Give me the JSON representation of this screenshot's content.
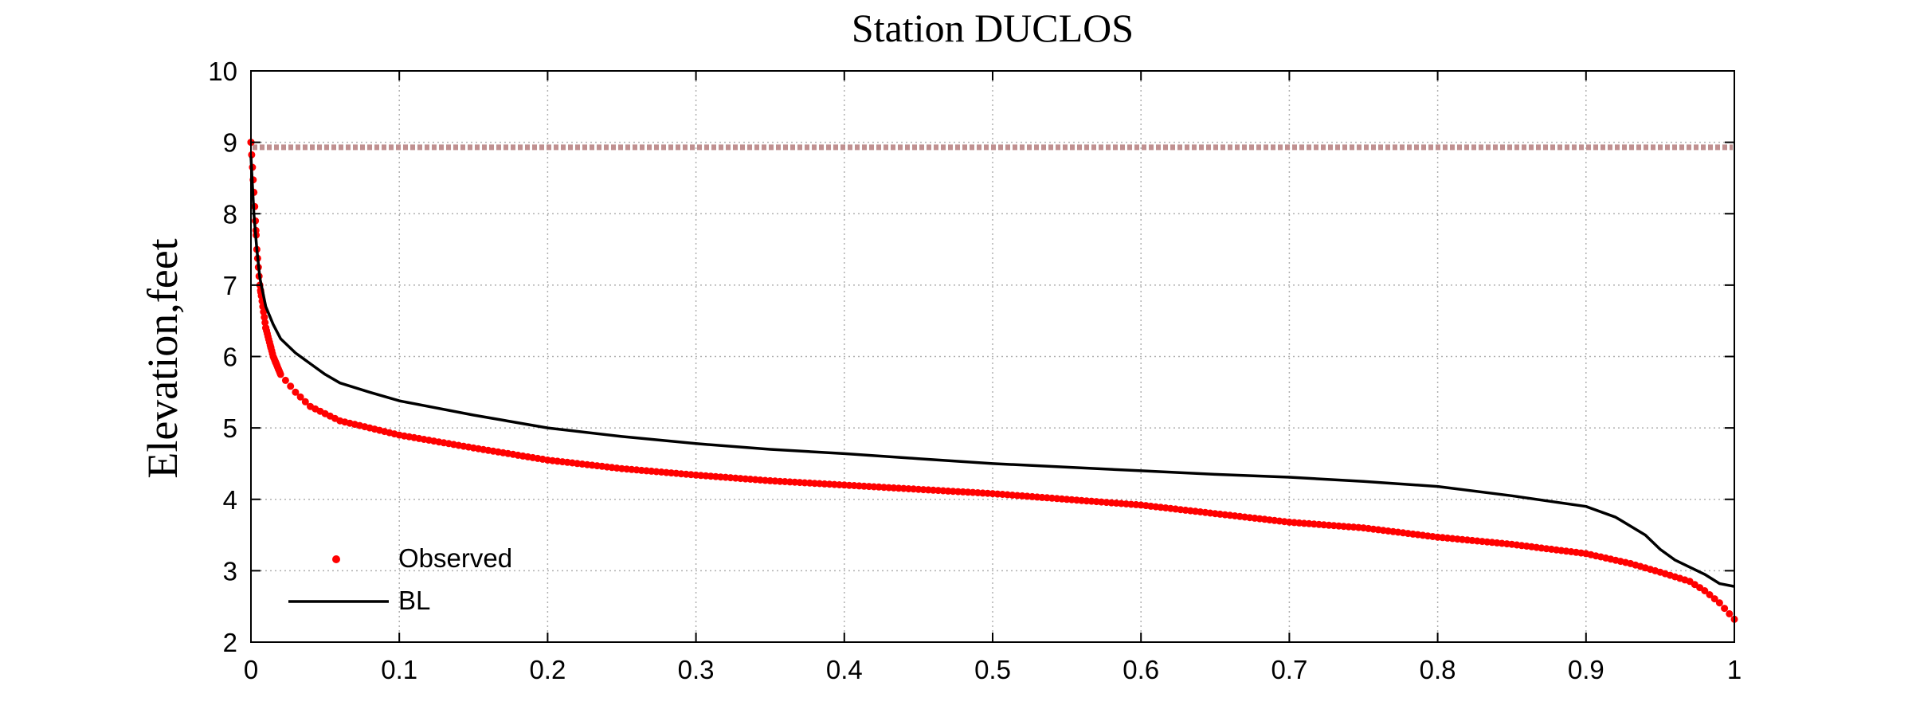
{
  "chart_data": {
    "type": "line",
    "title": "Station DUCLOS",
    "xlabel": "",
    "ylabel": "Elevation,feet",
    "xlim": [
      0,
      1
    ],
    "ylim": [
      2,
      10
    ],
    "x_ticks": [
      "0",
      "0.1",
      "0.2",
      "0.3",
      "0.4",
      "0.5",
      "0.6",
      "0.7",
      "0.8",
      "0.9",
      "1"
    ],
    "y_ticks": [
      "2",
      "3",
      "4",
      "5",
      "6",
      "7",
      "8",
      "9",
      "10"
    ],
    "grid": true,
    "legend_position": "bottom-left",
    "reference_line": {
      "y": 8.93,
      "color": "#c09090",
      "style": "dashed"
    },
    "series": [
      {
        "name": "Observed",
        "style": "markers",
        "color": "#ff0000",
        "x": [
          0,
          0.002,
          0.004,
          0.006,
          0.008,
          0.01,
          0.015,
          0.02,
          0.03,
          0.04,
          0.05,
          0.06,
          0.08,
          0.1,
          0.15,
          0.2,
          0.25,
          0.3,
          0.35,
          0.4,
          0.45,
          0.5,
          0.55,
          0.6,
          0.65,
          0.7,
          0.75,
          0.8,
          0.85,
          0.9,
          0.93,
          0.95,
          0.97,
          0.98,
          0.99,
          1.0
        ],
        "y": [
          9.0,
          8.3,
          7.5,
          7.0,
          6.7,
          6.4,
          6.0,
          5.75,
          5.5,
          5.3,
          5.2,
          5.1,
          5.0,
          4.9,
          4.72,
          4.55,
          4.43,
          4.34,
          4.26,
          4.2,
          4.14,
          4.08,
          4.0,
          3.92,
          3.8,
          3.68,
          3.6,
          3.47,
          3.37,
          3.24,
          3.1,
          2.98,
          2.85,
          2.72,
          2.55,
          2.32
        ]
      },
      {
        "name": "BL",
        "style": "line",
        "color": "#000000",
        "x": [
          0,
          0.002,
          0.004,
          0.006,
          0.008,
          0.01,
          0.015,
          0.02,
          0.03,
          0.04,
          0.05,
          0.06,
          0.08,
          0.1,
          0.15,
          0.2,
          0.25,
          0.3,
          0.35,
          0.4,
          0.45,
          0.5,
          0.55,
          0.6,
          0.65,
          0.7,
          0.75,
          0.8,
          0.85,
          0.9,
          0.92,
          0.94,
          0.95,
          0.96,
          0.97,
          0.98,
          0.99,
          1.0
        ],
        "y": [
          8.8,
          8.0,
          7.5,
          7.1,
          6.9,
          6.7,
          6.45,
          6.25,
          6.05,
          5.9,
          5.75,
          5.63,
          5.5,
          5.38,
          5.18,
          5.0,
          4.88,
          4.78,
          4.7,
          4.64,
          4.57,
          4.5,
          4.45,
          4.4,
          4.35,
          4.31,
          4.25,
          4.18,
          4.05,
          3.9,
          3.75,
          3.5,
          3.3,
          3.15,
          3.05,
          2.95,
          2.82,
          2.78
        ]
      }
    ]
  }
}
